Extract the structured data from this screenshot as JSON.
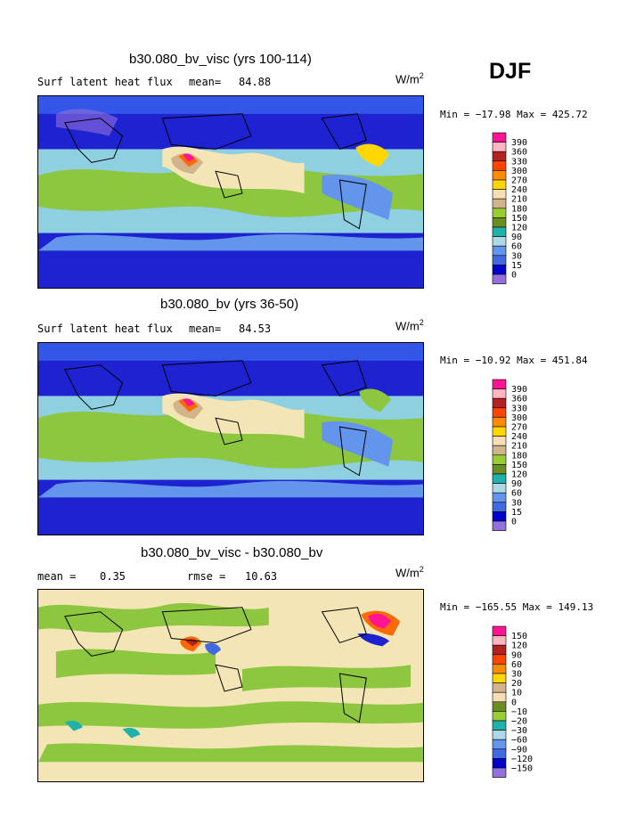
{
  "season": "DJF",
  "chart_data": [
    {
      "type": "heatmap",
      "title": "b30.080_bv_visc (yrs 100-114)",
      "left_label": "Surf latent heat flux",
      "mean_label": "mean=",
      "mean_value": "84.88",
      "units": "W/m",
      "units_sup": "2",
      "min_max": "Min = −17.98 Max = 425.72",
      "levels": [
        "390",
        "360",
        "330",
        "300",
        "270",
        "240",
        "210",
        "180",
        "150",
        "120",
        "90",
        "60",
        "30",
        "15",
        "0"
      ],
      "colors": [
        "#ff1493",
        "#ffb6c1",
        "#b22222",
        "#ff4500",
        "#ff8c00",
        "#ffd700",
        "#f5deb3",
        "#d2b48c",
        "#9acd32",
        "#6b8e23",
        "#20b2aa",
        "#add8e6",
        "#6495ed",
        "#4169e1",
        "#0000cd",
        "#9370db"
      ],
      "xlabel": "",
      "ylabel": ""
    },
    {
      "type": "heatmap",
      "title": "b30.080_bv (yrs 36-50)",
      "left_label": "Surf latent heat flux",
      "mean_label": "mean=",
      "mean_value": "84.53",
      "units": "W/m",
      "units_sup": "2",
      "min_max": "Min = −10.92 Max = 451.84",
      "levels": [
        "390",
        "360",
        "330",
        "300",
        "270",
        "240",
        "210",
        "180",
        "150",
        "120",
        "90",
        "60",
        "30",
        "15",
        "0"
      ],
      "colors": [
        "#ff1493",
        "#ffb6c1",
        "#b22222",
        "#ff4500",
        "#ff8c00",
        "#ffd700",
        "#f5deb3",
        "#d2b48c",
        "#9acd32",
        "#6b8e23",
        "#20b2aa",
        "#add8e6",
        "#6495ed",
        "#4169e1",
        "#0000cd",
        "#9370db"
      ],
      "xlabel": "",
      "ylabel": ""
    },
    {
      "type": "heatmap",
      "title": "b30.080_bv_visc - b30.080_bv",
      "mean_label": "mean =",
      "mean_value": "0.35",
      "rmse_label": "rmse =",
      "rmse_value": "10.63",
      "units": "W/m",
      "units_sup": "2",
      "min_max": "Min = −165.55 Max = 149.13",
      "levels": [
        "150",
        "120",
        "90",
        "60",
        "30",
        "20",
        "10",
        "0",
        "−10",
        "−20",
        "−30",
        "−60",
        "−90",
        "−120",
        "−150"
      ],
      "colors": [
        "#ff1493",
        "#ffb6c1",
        "#b22222",
        "#ff4500",
        "#ff8c00",
        "#ffd700",
        "#d2b48c",
        "#f5deb3",
        "#6b8e23",
        "#9acd32",
        "#20b2aa",
        "#add8e6",
        "#6495ed",
        "#4169e1",
        "#0000cd",
        "#9370db"
      ],
      "xlabel": "",
      "ylabel": ""
    }
  ]
}
